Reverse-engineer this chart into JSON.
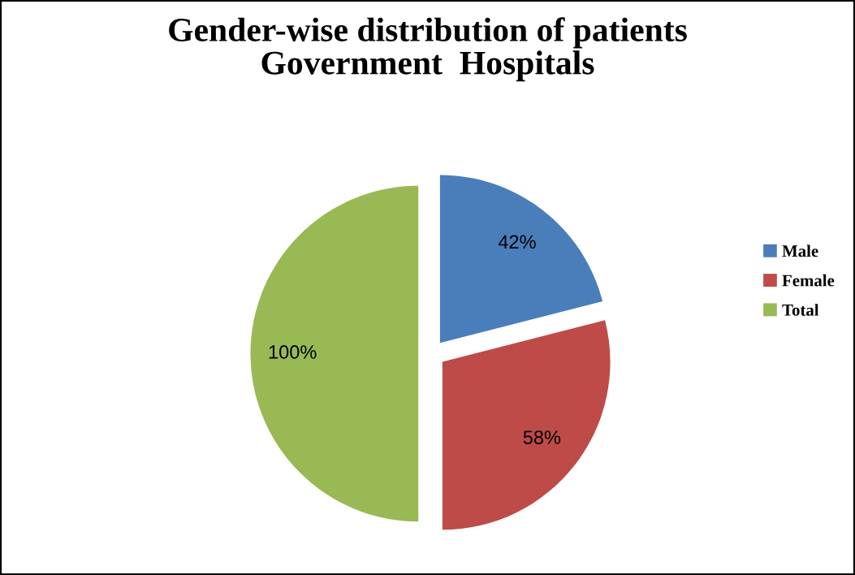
{
  "chart_data": {
    "type": "pie",
    "title": "Gender-wise distribution of patients\nGovernment  Hospitals",
    "categories": [
      "Male",
      "Female",
      "Total"
    ],
    "values": [
      42,
      58,
      100
    ],
    "value_labels": [
      "42%",
      "58%",
      "100%"
    ],
    "colors": [
      "#4a7ebb",
      "#be4b48",
      "#98b954"
    ],
    "legend": "right"
  }
}
